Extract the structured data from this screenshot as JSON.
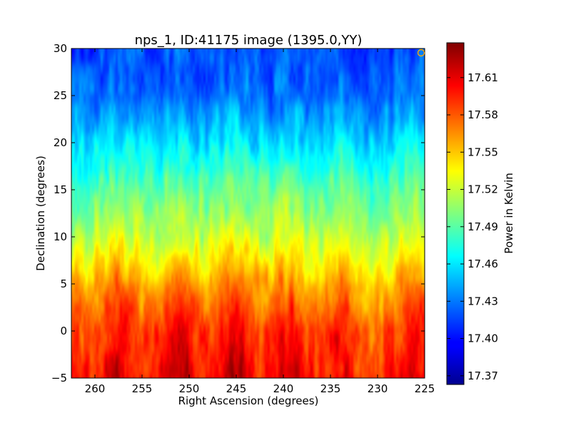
{
  "chart_data": {
    "type": "heatmap",
    "title": "nps_1, ID:41175 image (1395.0,YY)",
    "xlabel": "Right Ascension (degrees)",
    "ylabel": "Declination (degrees)",
    "colorbar_label": "Power in Kelvin",
    "colormap": "jet",
    "xlim": [
      262.5,
      225
    ],
    "ylim": [
      -5,
      30
    ],
    "xticks": [
      260,
      255,
      250,
      245,
      240,
      235,
      230,
      225
    ],
    "yticks": [
      -5,
      0,
      5,
      10,
      15,
      20,
      25,
      30
    ],
    "xtick_labels": [
      "260",
      "255",
      "250",
      "245",
      "240",
      "235",
      "230",
      "225"
    ],
    "ytick_labels": [
      "−5",
      "0",
      "5",
      "10",
      "15",
      "20",
      "25",
      "30"
    ],
    "clim": [
      17.363,
      17.638
    ],
    "colorbar_ticks": [
      17.37,
      17.4,
      17.43,
      17.46,
      17.49,
      17.52,
      17.55,
      17.58,
      17.61
    ],
    "colorbar_tick_labels": [
      "17.37",
      "17.40",
      "17.43",
      "17.46",
      "17.49",
      "17.52",
      "17.55",
      "17.58",
      "17.61"
    ],
    "dec_profile": {
      "dec": [
        -5,
        0,
        5,
        10,
        15,
        20,
        25,
        30
      ],
      "power": [
        17.595,
        17.585,
        17.555,
        17.515,
        17.49,
        17.455,
        17.425,
        17.415
      ]
    },
    "ra_streaks": [
      {
        "ra": 257.5,
        "delta": 0.025
      },
      {
        "ra": 251.0,
        "delta": 0.028
      },
      {
        "ra": 245.0,
        "delta": 0.03
      },
      {
        "ra": 239.5,
        "delta": 0.022
      },
      {
        "ra": 234.0,
        "delta": 0.015
      },
      {
        "ra": 231.0,
        "delta": -0.012
      },
      {
        "ra": 226.0,
        "delta": 0.018
      }
    ],
    "grid": false
  },
  "annotations": {
    "marker_color": "#ffaa00"
  }
}
